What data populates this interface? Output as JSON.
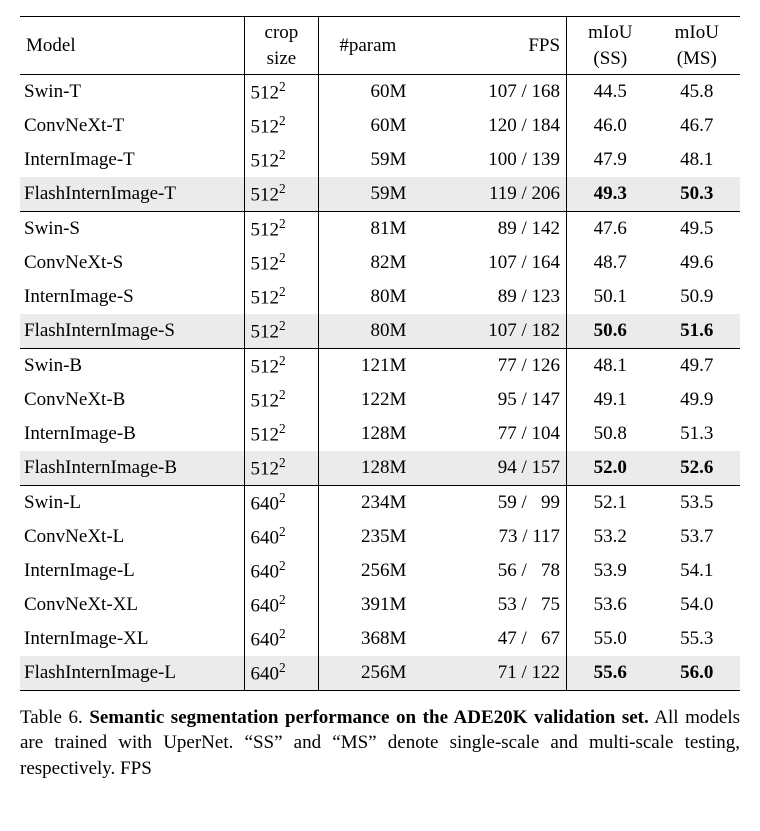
{
  "columns": {
    "model": "Model",
    "crop1": "crop",
    "crop2": "size",
    "param": "#param",
    "fps": "FPS",
    "ss1": "mIoU",
    "ss2": "(SS)",
    "ms1": "mIoU",
    "ms2": "(MS)"
  },
  "crop_exp": "2",
  "groups": [
    {
      "rows": [
        {
          "model": "Swin-T",
          "crop_base": "512",
          "param": "60M",
          "fps": "107 / 168",
          "ss": "44.5",
          "ms": "45.8",
          "hl": false,
          "bold": false
        },
        {
          "model": "ConvNeXt-T",
          "crop_base": "512",
          "param": "60M",
          "fps": "120 / 184",
          "ss": "46.0",
          "ms": "46.7",
          "hl": false,
          "bold": false
        },
        {
          "model": "InternImage-T",
          "crop_base": "512",
          "param": "59M",
          "fps": "100 / 139",
          "ss": "47.9",
          "ms": "48.1",
          "hl": false,
          "bold": false
        },
        {
          "model": "FlashInternImage-T",
          "crop_base": "512",
          "param": "59M",
          "fps": "119 / 206",
          "ss": "49.3",
          "ms": "50.3",
          "hl": true,
          "bold": true
        }
      ]
    },
    {
      "rows": [
        {
          "model": "Swin-S",
          "crop_base": "512",
          "param": "81M",
          "fps": "89 / 142",
          "ss": "47.6",
          "ms": "49.5",
          "hl": false,
          "bold": false
        },
        {
          "model": "ConvNeXt-S",
          "crop_base": "512",
          "param": "82M",
          "fps": "107 / 164",
          "ss": "48.7",
          "ms": "49.6",
          "hl": false,
          "bold": false
        },
        {
          "model": "InternImage-S",
          "crop_base": "512",
          "param": "80M",
          "fps": "89 / 123",
          "ss": "50.1",
          "ms": "50.9",
          "hl": false,
          "bold": false
        },
        {
          "model": "FlashInternImage-S",
          "crop_base": "512",
          "param": "80M",
          "fps": "107 / 182",
          "ss": "50.6",
          "ms": "51.6",
          "hl": true,
          "bold": true
        }
      ]
    },
    {
      "rows": [
        {
          "model": "Swin-B",
          "crop_base": "512",
          "param": "121M",
          "fps": "77 / 126",
          "ss": "48.1",
          "ms": "49.7",
          "hl": false,
          "bold": false
        },
        {
          "model": "ConvNeXt-B",
          "crop_base": "512",
          "param": "122M",
          "fps": "95 / 147",
          "ss": "49.1",
          "ms": "49.9",
          "hl": false,
          "bold": false
        },
        {
          "model": "InternImage-B",
          "crop_base": "512",
          "param": "128M",
          "fps": "77 / 104",
          "ss": "50.8",
          "ms": "51.3",
          "hl": false,
          "bold": false
        },
        {
          "model": "FlashInternImage-B",
          "crop_base": "512",
          "param": "128M",
          "fps": "94 / 157",
          "ss": "52.0",
          "ms": "52.6",
          "hl": true,
          "bold": true
        }
      ]
    },
    {
      "rows": [
        {
          "model": "Swin-L",
          "crop_base": "640",
          "param": "234M",
          "fps": "59 /   99",
          "ss": "52.1",
          "ms": "53.5",
          "hl": false,
          "bold": false
        },
        {
          "model": "ConvNeXt-L",
          "crop_base": "640",
          "param": "235M",
          "fps": "73 / 117",
          "ss": "53.2",
          "ms": "53.7",
          "hl": false,
          "bold": false
        },
        {
          "model": "InternImage-L",
          "crop_base": "640",
          "param": "256M",
          "fps": "56 /   78",
          "ss": "53.9",
          "ms": "54.1",
          "hl": false,
          "bold": false
        },
        {
          "model": "ConvNeXt-XL",
          "crop_base": "640",
          "param": "391M",
          "fps": "53 /   75",
          "ss": "53.6",
          "ms": "54.0",
          "hl": false,
          "bold": false
        },
        {
          "model": "InternImage-XL",
          "crop_base": "640",
          "param": "368M",
          "fps": "47 /   67",
          "ss": "55.0",
          "ms": "55.3",
          "hl": false,
          "bold": false
        },
        {
          "model": "FlashInternImage-L",
          "crop_base": "640",
          "param": "256M",
          "fps": "71 / 122",
          "ss": "55.6",
          "ms": "56.0",
          "hl": true,
          "bold": true
        }
      ]
    }
  ],
  "caption": {
    "lead": "Table 6. ",
    "title": "Semantic segmentation performance on the ADE20K validation set.",
    "rest": " All models are trained with UperNet. “SS” and “MS” denote single-scale and multi-scale testing, respectively. FPS"
  }
}
